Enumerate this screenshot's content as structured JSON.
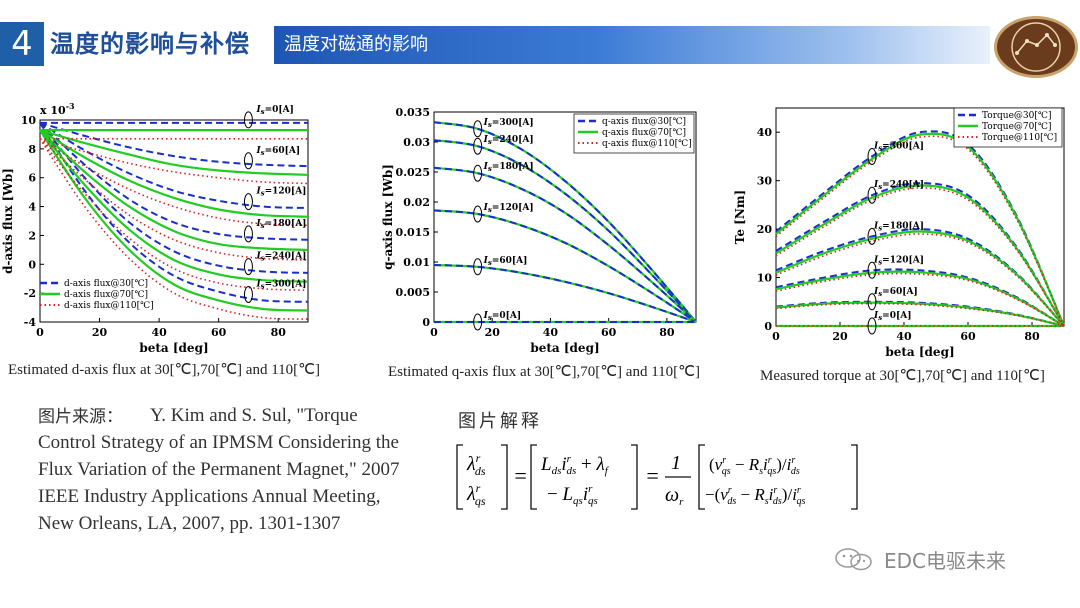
{
  "header": {
    "section_number": "4",
    "section_title": "温度的影响与补偿",
    "subtitle": "温度对磁通的影响",
    "logo_icon": "auto-elect-logo"
  },
  "colors": {
    "accent": "#1f5fa8",
    "series_30": "#1a2fc9",
    "series_70": "#22cc22",
    "series_110": "#d82020"
  },
  "captions": [
    "Estimated d-axis flux at 30[℃],70[℃] and 110[℃]",
    "Estimated q-axis flux at 30[℃],70[℃] and 110[℃]",
    "Measured torque at 30[℃],70[℃] and 110[℃]"
  ],
  "reference": {
    "label": "图片来源：",
    "text": "Y. Kim and S. Sul, \"Torque Control Strategy of an IPMSM Considering the Flux Variation of the Permanent Magnet,\" 2007 IEEE Industry Applications Annual Meeting, New Orleans, LA, 2007, pp. 1301-1307"
  },
  "explanation_label": "图片解释",
  "watermark": "EDC电驱未来",
  "chart_data": [
    {
      "type": "line",
      "xlabel": "beta [deg]",
      "ylabel": "d-axis flux [Wb]",
      "y_exponent_label": "x 10",
      "y_exponent": "-3",
      "xlim": [
        0,
        90
      ],
      "ylim": [
        -4,
        10
      ],
      "xticks": [
        0,
        20,
        40,
        60,
        80
      ],
      "yticks": [
        -4,
        -2,
        0,
        2,
        4,
        6,
        8,
        10
      ],
      "legend_position": "bottom-left",
      "legend": [
        "d-axis flux@30[℃]",
        "d-axis flux@70[℃]",
        "d-axis flux@110[℃]"
      ],
      "current_labels": [
        "I_s=0[A]",
        "I_s=60[A]",
        "I_s=120[A]",
        "I_s=180[A]",
        "I_s=240[A]",
        "I_s=300[A]"
      ],
      "x": [
        0,
        15,
        30,
        45,
        60,
        75,
        90
      ],
      "series": [
        {
          "name": "d-axis flux@30[℃]",
          "current": 0,
          "values": [
            9.8,
            9.8,
            9.8,
            9.8,
            9.8,
            9.8,
            9.8
          ]
        },
        {
          "name": "d-axis flux@30[℃]",
          "current": 60,
          "values": [
            9.8,
            8.9,
            8.1,
            7.5,
            7.1,
            6.9,
            6.8
          ]
        },
        {
          "name": "d-axis flux@30[℃]",
          "current": 120,
          "values": [
            9.8,
            7.9,
            6.3,
            5.1,
            4.4,
            4.0,
            3.9
          ]
        },
        {
          "name": "d-axis flux@30[℃]",
          "current": 180,
          "values": [
            9.8,
            6.9,
            4.5,
            2.9,
            2.1,
            1.8,
            1.7
          ]
        },
        {
          "name": "d-axis flux@30[℃]",
          "current": 240,
          "values": [
            9.8,
            6.0,
            2.9,
            0.9,
            -0.1,
            -0.5,
            -0.6
          ]
        },
        {
          "name": "d-axis flux@30[℃]",
          "current": 300,
          "values": [
            9.8,
            5.1,
            1.5,
            -0.8,
            -1.9,
            -2.5,
            -2.6
          ]
        },
        {
          "name": "d-axis flux@70[℃]",
          "current": 0,
          "values": [
            9.3,
            9.3,
            9.3,
            9.3,
            9.3,
            9.3,
            9.3
          ]
        },
        {
          "name": "d-axis flux@70[℃]",
          "current": 60,
          "values": [
            9.3,
            8.4,
            7.6,
            6.9,
            6.5,
            6.3,
            6.2
          ]
        },
        {
          "name": "d-axis flux@70[℃]",
          "current": 120,
          "values": [
            9.3,
            7.4,
            5.8,
            4.6,
            3.8,
            3.4,
            3.3
          ]
        },
        {
          "name": "d-axis flux@70[℃]",
          "current": 180,
          "values": [
            9.3,
            6.4,
            4.0,
            2.3,
            1.4,
            1.1,
            1.0
          ]
        },
        {
          "name": "d-axis flux@70[℃]",
          "current": 240,
          "values": [
            9.3,
            5.5,
            2.4,
            0.3,
            -0.7,
            -1.1,
            -1.2
          ]
        },
        {
          "name": "d-axis flux@70[℃]",
          "current": 300,
          "values": [
            9.3,
            4.6,
            1.0,
            -1.4,
            -2.5,
            -3.1,
            -3.2
          ]
        },
        {
          "name": "d-axis flux@110[℃]",
          "current": 0,
          "values": [
            8.7,
            8.7,
            8.7,
            8.7,
            8.7,
            8.7,
            8.7
          ]
        },
        {
          "name": "d-axis flux@110[℃]",
          "current": 60,
          "values": [
            8.7,
            7.8,
            7.0,
            6.4,
            6.0,
            5.7,
            5.6
          ]
        },
        {
          "name": "d-axis flux@110[℃]",
          "current": 120,
          "values": [
            8.7,
            6.8,
            5.2,
            4.0,
            3.2,
            2.8,
            2.7
          ]
        },
        {
          "name": "d-axis flux@110[℃]",
          "current": 180,
          "values": [
            8.7,
            5.9,
            3.4,
            1.7,
            0.8,
            0.4,
            0.3
          ]
        },
        {
          "name": "d-axis flux@110[℃]",
          "current": 240,
          "values": [
            8.7,
            4.9,
            1.8,
            -0.3,
            -1.3,
            -1.7,
            -1.8
          ]
        },
        {
          "name": "d-axis flux@110[℃]",
          "current": 300,
          "values": [
            8.7,
            4.0,
            0.4,
            -2.0,
            -3.1,
            -3.7,
            -3.8
          ]
        }
      ]
    },
    {
      "type": "line",
      "xlabel": "beta [deg]",
      "ylabel": "q-axis flux [Wb]",
      "xlim": [
        0,
        90
      ],
      "ylim": [
        0,
        0.035
      ],
      "xticks": [
        0,
        20,
        40,
        60,
        80
      ],
      "yticks": [
        0,
        0.005,
        0.01,
        0.015,
        0.02,
        0.025,
        0.03,
        0.035
      ],
      "legend_position": "top-right",
      "legend": [
        "q-axis flux@30[℃]",
        "q-axis flux@70[℃]",
        "q-axis flux@110[℃]"
      ],
      "current_labels": [
        "I_s=300[A]",
        "I_s=240[A]",
        "I_s=180[A]",
        "I_s=120[A]",
        "I_s=60[A]",
        "I_s=0[A]"
      ],
      "x": [
        0,
        15,
        30,
        45,
        60,
        75,
        90
      ],
      "series": [
        {
          "name": "q-axis flux",
          "current": 300,
          "values": [
            0.0333,
            0.0322,
            0.0288,
            0.0235,
            0.0167,
            0.0086,
            0
          ]
        },
        {
          "name": "q-axis flux",
          "current": 240,
          "values": [
            0.0303,
            0.0293,
            0.0262,
            0.0214,
            0.0152,
            0.0078,
            0
          ]
        },
        {
          "name": "q-axis flux",
          "current": 180,
          "values": [
            0.0257,
            0.0248,
            0.0222,
            0.0182,
            0.0128,
            0.0066,
            0
          ]
        },
        {
          "name": "q-axis flux",
          "current": 120,
          "values": [
            0.0186,
            0.018,
            0.0161,
            0.0132,
            0.0093,
            0.0048,
            0
          ]
        },
        {
          "name": "q-axis flux",
          "current": 60,
          "values": [
            0.0095,
            0.0092,
            0.0082,
            0.0067,
            0.0048,
            0.0025,
            0
          ]
        },
        {
          "name": "q-axis flux",
          "current": 0,
          "values": [
            0,
            0,
            0,
            0,
            0,
            0,
            0
          ]
        }
      ]
    },
    {
      "type": "line",
      "xlabel": "beta [deg]",
      "ylabel": "Te [Nm]",
      "xlim": [
        0,
        90
      ],
      "ylim": [
        0,
        45
      ],
      "xticks": [
        0,
        20,
        40,
        60,
        80
      ],
      "yticks": [
        0,
        10,
        20,
        30,
        40
      ],
      "legend_position": "top-right",
      "legend": [
        "Torque@30[℃]",
        "Torque@70[℃]",
        "Torque@110[℃]"
      ],
      "current_labels": [
        "I_s=300[A]",
        "I_s=240[A]",
        "I_s=180[A]",
        "I_s=120[A]",
        "I_s=60[A]",
        "I_s=0[A]"
      ],
      "x": [
        0,
        15,
        30,
        45,
        60,
        75,
        90
      ],
      "series": [
        {
          "name": "Torque@30[℃]",
          "current": 300,
          "values": [
            19.5,
            27.5,
            35.0,
            40.0,
            37.5,
            23.0,
            0
          ]
        },
        {
          "name": "Torque@30[℃]",
          "current": 240,
          "values": [
            15.5,
            21.5,
            27.0,
            29.5,
            27.0,
            16.5,
            0
          ]
        },
        {
          "name": "Torque@30[℃]",
          "current": 180,
          "values": [
            11.5,
            15.5,
            18.5,
            20.0,
            18.0,
            11.0,
            0
          ]
        },
        {
          "name": "Torque@30[℃]",
          "current": 120,
          "values": [
            8.0,
            10.0,
            11.5,
            11.5,
            10.0,
            6.0,
            0
          ]
        },
        {
          "name": "Torque@30[℃]",
          "current": 60,
          "values": [
            4.0,
            4.8,
            5.0,
            4.8,
            4.0,
            2.4,
            0
          ]
        },
        {
          "name": "Torque@30[℃]",
          "current": 0,
          "values": [
            0,
            0,
            0,
            0,
            0,
            0,
            0
          ]
        },
        {
          "name": "Torque@70[℃]",
          "current": 300,
          "values": [
            19.0,
            27.0,
            34.5,
            39.5,
            37.0,
            22.7,
            0
          ]
        },
        {
          "name": "Torque@70[℃]",
          "current": 240,
          "values": [
            15.0,
            21.0,
            26.5,
            29.0,
            26.5,
            16.2,
            0
          ]
        },
        {
          "name": "Torque@70[℃]",
          "current": 180,
          "values": [
            11.0,
            15.0,
            18.0,
            19.5,
            17.6,
            10.8,
            0
          ]
        },
        {
          "name": "Torque@70[℃]",
          "current": 120,
          "values": [
            7.6,
            9.6,
            11.0,
            11.1,
            9.7,
            5.8,
            0
          ]
        },
        {
          "name": "Torque@70[℃]",
          "current": 60,
          "values": [
            3.8,
            4.6,
            4.8,
            4.6,
            3.8,
            2.3,
            0
          ]
        },
        {
          "name": "Torque@70[℃]",
          "current": 0,
          "values": [
            0,
            0,
            0,
            0,
            0,
            0,
            0
          ]
        },
        {
          "name": "Torque@110[℃]",
          "current": 300,
          "values": [
            18.5,
            26.5,
            34.0,
            39.0,
            36.5,
            22.3,
            0
          ]
        },
        {
          "name": "Torque@110[℃]",
          "current": 240,
          "values": [
            14.5,
            20.5,
            26.0,
            28.5,
            26.0,
            15.9,
            0
          ]
        },
        {
          "name": "Torque@110[℃]",
          "current": 180,
          "values": [
            10.5,
            14.5,
            17.5,
            19.0,
            17.2,
            10.5,
            0
          ]
        },
        {
          "name": "Torque@110[℃]",
          "current": 120,
          "values": [
            7.2,
            9.2,
            10.6,
            10.7,
            9.4,
            5.6,
            0
          ]
        },
        {
          "name": "Torque@110[℃]",
          "current": 60,
          "values": [
            3.6,
            4.4,
            4.6,
            4.4,
            3.6,
            2.2,
            0
          ]
        },
        {
          "name": "Torque@110[℃]",
          "current": 0,
          "values": [
            0,
            0,
            0,
            0,
            0,
            0,
            0
          ]
        }
      ]
    }
  ]
}
